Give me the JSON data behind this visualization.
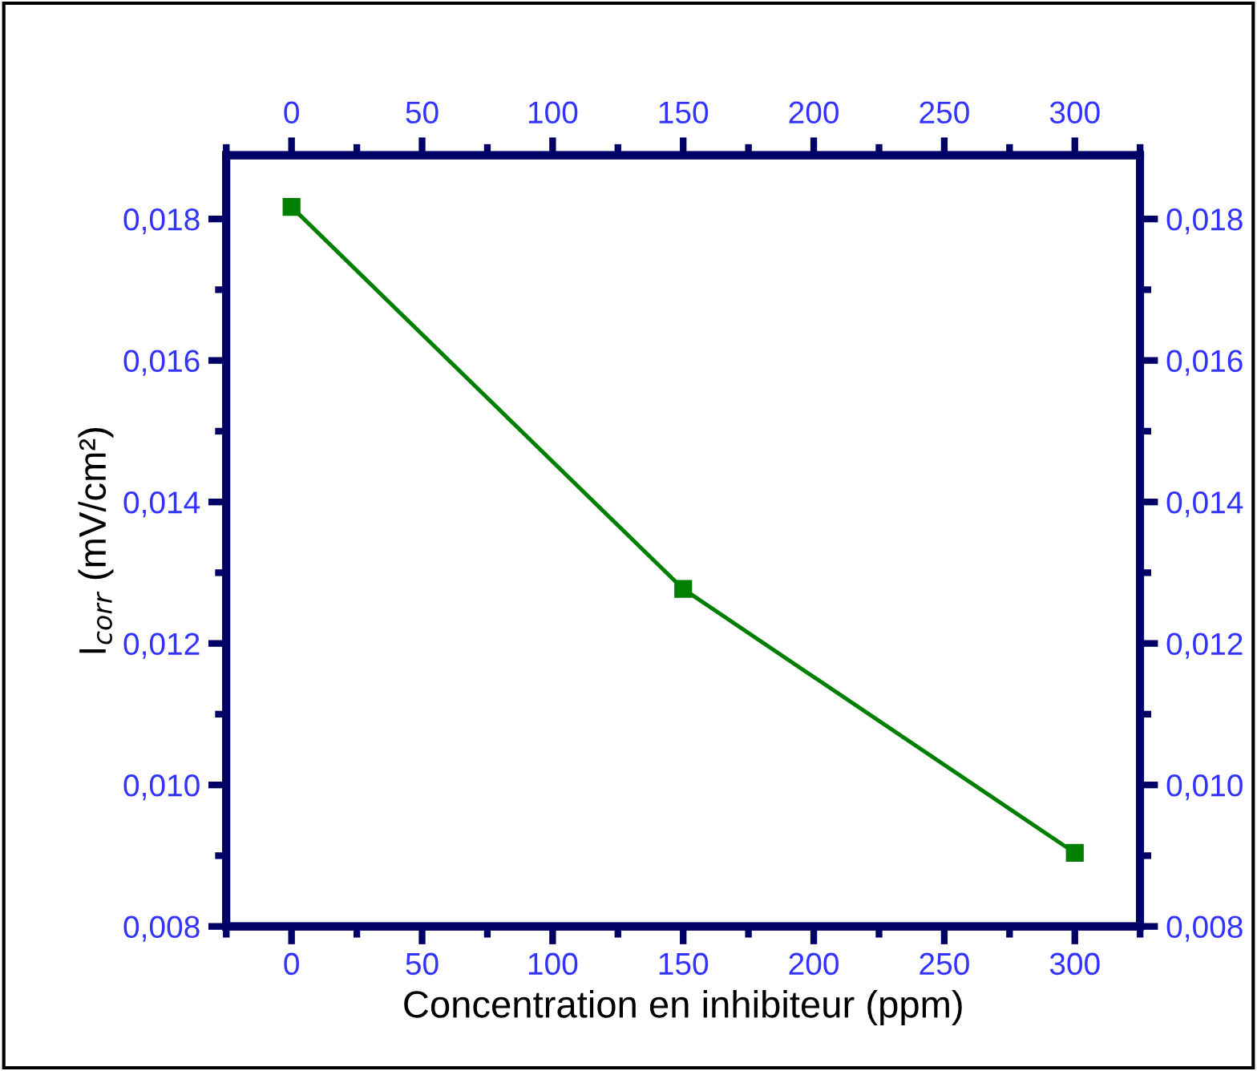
{
  "chart_data": {
    "type": "line",
    "xlabel": "Concentration en inhibiteur (ppm)",
    "ylabel": "I$_{corr}$ (mV/cm²)",
    "x": [
      0,
      150,
      300
    ],
    "series": [
      {
        "color": "#007f00",
        "values": [
          0.01817,
          0.01277,
          0.00904
        ]
      }
    ],
    "marker": "square",
    "line_style": "solid",
    "grid": false,
    "legend": false,
    "xlim": [
      -25,
      325
    ],
    "xticks": [
      {
        "value": -25,
        "label": null
      },
      0,
      {
        "value": 25,
        "label": null
      },
      50,
      {
        "value": 75,
        "label": null
      },
      100,
      {
        "value": 125,
        "label": null
      },
      150,
      {
        "value": 175,
        "label": null
      },
      200,
      {
        "value": 225,
        "label": null
      },
      250,
      {
        "value": 275,
        "label": null
      },
      300,
      {
        "value": 325,
        "label": null
      }
    ],
    "x2lim": [
      -25,
      325
    ],
    "x2ticks": [
      {
        "value": -25,
        "label": null
      },
      0,
      {
        "value": 25,
        "label": null
      },
      50,
      {
        "value": 75,
        "label": null
      },
      100,
      {
        "value": 125,
        "label": null
      },
      150,
      {
        "value": 175,
        "label": null
      },
      200,
      {
        "value": 225,
        "label": null
      },
      250,
      {
        "value": 275,
        "label": null
      },
      300,
      {
        "value": 325,
        "label": null
      }
    ],
    "ylim": [
      0.008,
      0.0189
    ],
    "yticks": [
      {
        "value": 0.008,
        "label": "0,008"
      },
      {
        "value": 0.009,
        "label": null
      },
      {
        "value": 0.01,
        "label": "0,010"
      },
      {
        "value": 0.011,
        "label": null
      },
      {
        "value": 0.012,
        "label": "0,012"
      },
      {
        "value": 0.013,
        "label": null
      },
      {
        "value": 0.014,
        "label": "0,014"
      },
      {
        "value": 0.015,
        "label": null
      },
      {
        "value": 0.016,
        "label": "0,016"
      },
      {
        "value": 0.017,
        "label": null
      },
      {
        "value": 0.018,
        "label": "0,018"
      }
    ],
    "y2lim": [
      0.008,
      0.0189
    ],
    "y2ticks": [
      {
        "value": 0.008,
        "label": "0,008"
      },
      {
        "value": 0.009,
        "label": null
      },
      {
        "value": 0.01,
        "label": "0,010"
      },
      {
        "value": 0.011,
        "label": null
      },
      {
        "value": 0.012,
        "label": "0,012"
      },
      {
        "value": 0.013,
        "label": null
      },
      {
        "value": 0.014,
        "label": "0,014"
      },
      {
        "value": 0.015,
        "label": null
      },
      {
        "value": 0.016,
        "label": "0,016"
      },
      {
        "value": 0.017,
        "label": null
      },
      {
        "value": 0.018,
        "label": "0,018"
      }
    ]
  }
}
